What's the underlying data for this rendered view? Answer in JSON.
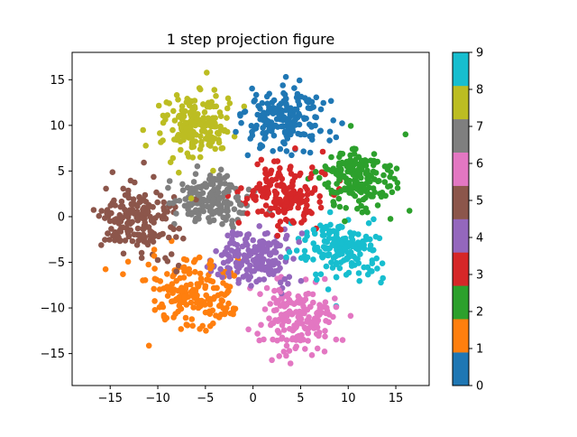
{
  "chart_data": {
    "type": "scatter",
    "title": "1 step projection figure",
    "xlabel": "",
    "ylabel": "",
    "xlim": [
      -19,
      18.5
    ],
    "ylim": [
      -18.5,
      18
    ],
    "xticks": [
      -15,
      -10,
      -5,
      0,
      5,
      10,
      15
    ],
    "yticks": [
      -15,
      -10,
      -5,
      0,
      5,
      10,
      15
    ],
    "colormap": "tab10",
    "colorbar": {
      "ticks": [
        "0",
        "1",
        "2",
        "3",
        "4",
        "5",
        "6",
        "7",
        "8",
        "9"
      ],
      "colors": [
        "#1f77b4",
        "#ff7f0e",
        "#2ca02c",
        "#d62728",
        "#9467bd",
        "#8c564b",
        "#e377c2",
        "#7f7f7f",
        "#bcbd22",
        "#17becf"
      ]
    },
    "series": [
      {
        "label": "0",
        "center": [
          3.5,
          10.5
        ],
        "spread": [
          3.0,
          2.4
        ],
        "count": 180
      },
      {
        "label": "1",
        "center": [
          -6.5,
          -8.5
        ],
        "spread": [
          3.0,
          2.5
        ],
        "count": 180
      },
      {
        "label": "2",
        "center": [
          11.0,
          4.0
        ],
        "spread": [
          2.7,
          2.4
        ],
        "count": 180
      },
      {
        "label": "3",
        "center": [
          3.0,
          2.5
        ],
        "spread": [
          2.6,
          2.1
        ],
        "count": 180
      },
      {
        "label": "4",
        "center": [
          0.5,
          -4.5
        ],
        "spread": [
          2.5,
          2.1
        ],
        "count": 180
      },
      {
        "label": "5",
        "center": [
          -12.0,
          0.0
        ],
        "spread": [
          2.6,
          2.8
        ],
        "count": 180
      },
      {
        "label": "6",
        "center": [
          4.5,
          -11.0
        ],
        "spread": [
          2.7,
          2.6
        ],
        "count": 180
      },
      {
        "label": "7",
        "center": [
          -4.5,
          2.0
        ],
        "spread": [
          2.5,
          2.0
        ],
        "count": 180
      },
      {
        "label": "8",
        "center": [
          -6.0,
          10.0
        ],
        "spread": [
          2.4,
          2.6
        ],
        "count": 180
      },
      {
        "label": "9",
        "center": [
          9.5,
          -3.5
        ],
        "spread": [
          2.7,
          2.1
        ],
        "count": 180
      }
    ]
  }
}
